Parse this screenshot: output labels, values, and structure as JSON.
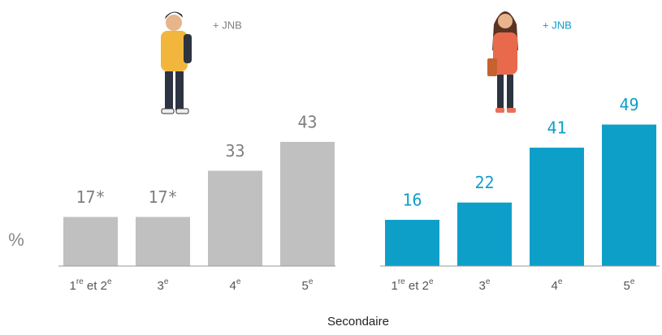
{
  "chart_data": [
    {
      "type": "bar",
      "annotation": "+ JNB",
      "ylabel": "%",
      "categories": [
        "1re et 2e",
        "3e",
        "4e",
        "5e"
      ],
      "values": [
        17,
        17,
        33,
        43
      ],
      "value_labels": [
        "17*",
        "17*",
        "33",
        "43"
      ],
      "color": "#c0c0c0",
      "label_color": "#7f7f7f",
      "ylim": [
        0,
        50
      ]
    },
    {
      "type": "bar",
      "annotation": "+ JNB",
      "xlabel": "Secondaire",
      "categories": [
        "1re et 2e",
        "3e",
        "4e",
        "5e"
      ],
      "values": [
        16,
        22,
        41,
        49
      ],
      "value_labels": [
        "16",
        "22",
        "41",
        "49"
      ],
      "color": "#0e9fc9",
      "label_color": "#0e9fc9",
      "ylim": [
        0,
        50
      ]
    }
  ]
}
